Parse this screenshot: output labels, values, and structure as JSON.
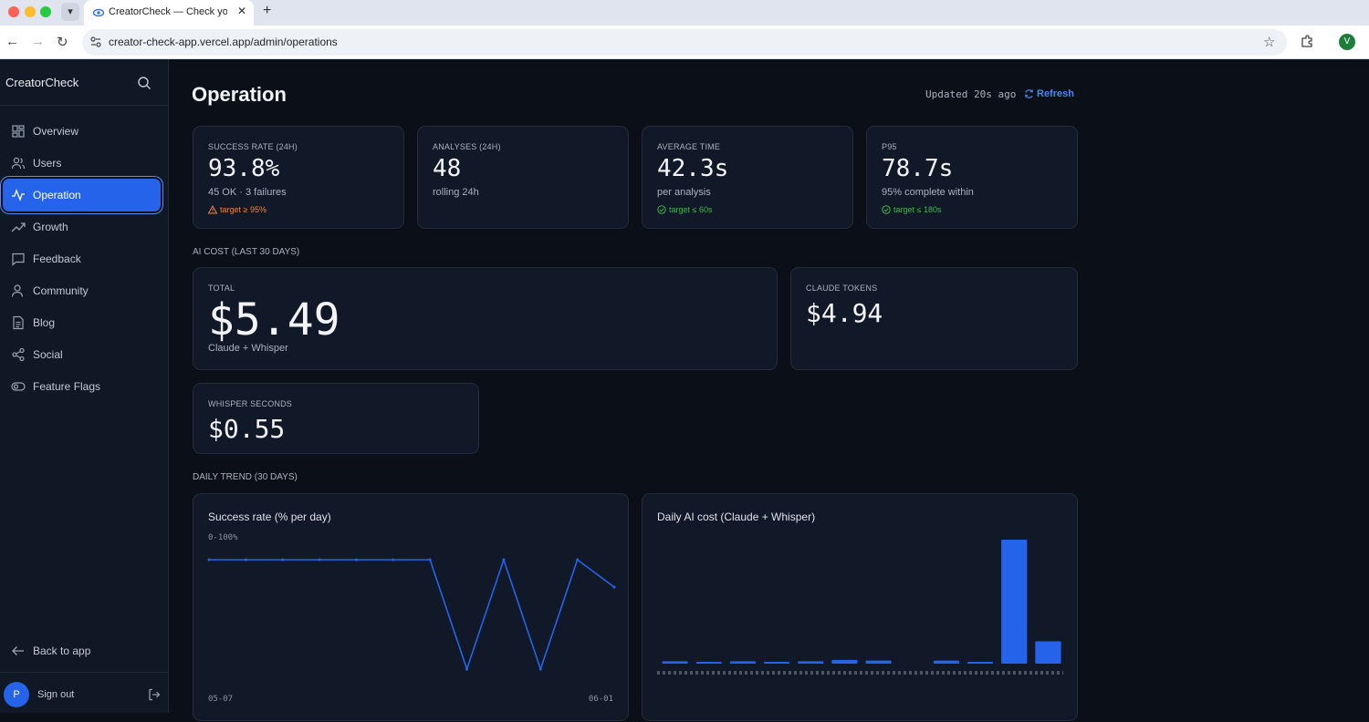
{
  "browser": {
    "tab_title": "CreatorCheck — Check your content",
    "url": "creator-check-app.vercel.app/admin/operations",
    "profile_initial": "V"
  },
  "sidebar": {
    "brand": "CreatorCheck",
    "items": [
      {
        "label": "Overview",
        "icon": "grid-icon"
      },
      {
        "label": "Users",
        "icon": "users-icon"
      },
      {
        "label": "Operation",
        "icon": "activity-icon",
        "active": true
      },
      {
        "label": "Growth",
        "icon": "trending-up-icon"
      },
      {
        "label": "Feedback",
        "icon": "message-square-icon"
      },
      {
        "label": "Community",
        "icon": "community-icon"
      },
      {
        "label": "Blog",
        "icon": "file-text-icon"
      },
      {
        "label": "Social",
        "icon": "share-icon"
      },
      {
        "label": "Feature Flags",
        "icon": "toggle-icon"
      }
    ],
    "back_label": "Back to app",
    "user_initial": "P",
    "signout_label": "Sign out"
  },
  "header": {
    "title": "Operation",
    "updated": "Updated 20s ago",
    "refresh_label": "Refresh"
  },
  "kpis": [
    {
      "label": "Success rate (24h)",
      "value": "93.8%",
      "sub": "45 OK · 3 failures",
      "target": "target ≥ 95%",
      "status": "warn"
    },
    {
      "label": "Analyses (24h)",
      "value": "48",
      "sub": "rolling 24h",
      "target": "",
      "status": ""
    },
    {
      "label": "Average time",
      "value": "42.3s",
      "sub": "per analysis",
      "target": "target ≤ 60s",
      "status": "ok"
    },
    {
      "label": "P95",
      "value": "78.7s",
      "sub": "95% complete within",
      "target": "target ≤ 180s",
      "status": "ok"
    }
  ],
  "ai_cost": {
    "section_title": "AI cost (last 30 days)",
    "total_label": "Total",
    "total_value": "$5.49",
    "total_sub": "Claude + Whisper",
    "claude_label": "Claude tokens",
    "claude_value": "$4.94",
    "whisper_label": "Whisper seconds",
    "whisper_value": "$0.55"
  },
  "trend": {
    "section_title": "Daily trend (30 days)"
  },
  "colors": {
    "accent": "#2563eb",
    "warn": "#f0883e",
    "ok": "#3fb950"
  },
  "chart_data": [
    {
      "type": "line",
      "title": "Success rate (% per day)",
      "note": "0-100%",
      "x_start": "05-07",
      "x_end": "06-01",
      "ylim": [
        0,
        100
      ],
      "values": [
        100,
        100,
        100,
        100,
        100,
        100,
        100,
        0,
        100,
        0,
        100,
        75
      ],
      "grid": false
    },
    {
      "type": "bar",
      "title": "Daily AI cost (Claude + Whisper)",
      "values": [
        0.07,
        0.05,
        0.07,
        0.05,
        0.07,
        0.11,
        0.09,
        0,
        0.09,
        0.01,
        3.6,
        0.65
      ],
      "grid": false
    }
  ]
}
